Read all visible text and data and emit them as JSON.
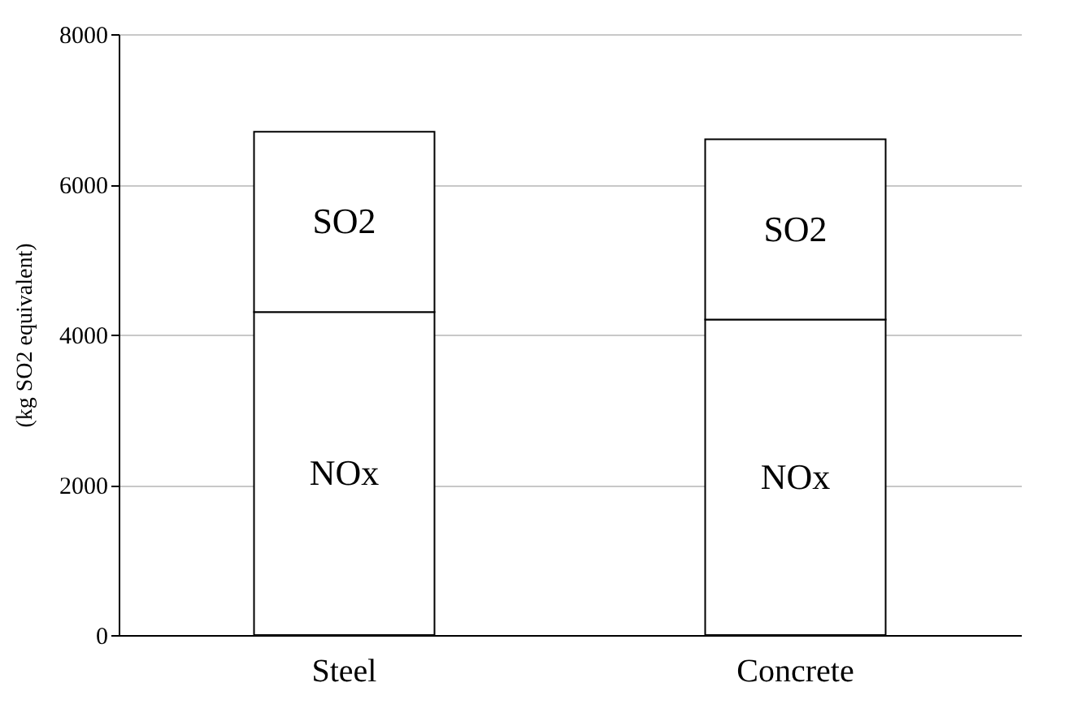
{
  "chart_data": {
    "type": "bar",
    "ylabel": "(kg SO2 equivalent)",
    "categories": [
      "Steel",
      "Concrete"
    ],
    "stacked": true,
    "series": [
      {
        "name": "NOx",
        "color": "#ffffff",
        "values": [
          4300,
          4200
        ]
      },
      {
        "name": "SO2",
        "color": "#ffffff",
        "values": [
          2400,
          2400
        ]
      }
    ],
    "ylim": [
      0,
      8000
    ],
    "yticks": [
      0,
      2000,
      4000,
      6000,
      8000
    ],
    "grid": "y"
  }
}
